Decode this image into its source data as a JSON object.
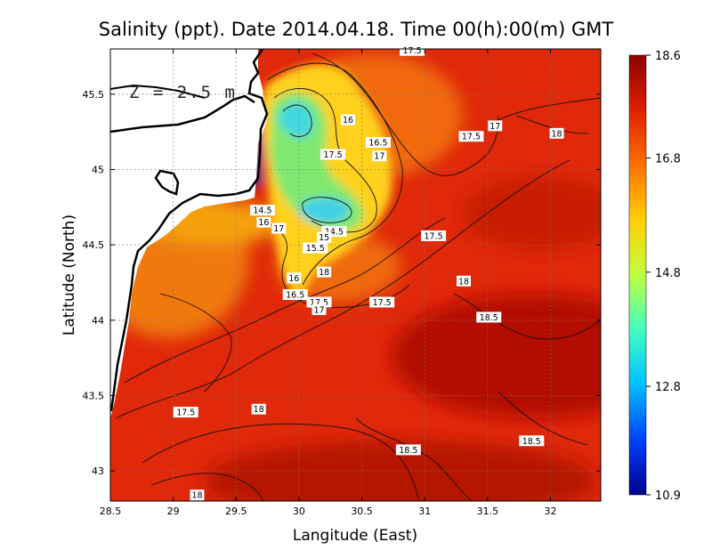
{
  "chart_data": {
    "type": "heatmap",
    "title": "Salinity (ppt). Date 2014.04.18. Time 00(h):00(m) GMT",
    "xlabel": "Langitude (East)",
    "ylabel": "Latitude (North)",
    "annotation": "Z = 2.5 m",
    "xlim": [
      28.5,
      32.4
    ],
    "ylim": [
      42.8,
      45.8
    ],
    "x_ticks": [
      "28.5",
      "29",
      "29.5",
      "30",
      "30.5",
      "31",
      "31.5",
      "32"
    ],
    "x_tick_values": [
      28.5,
      29,
      29.5,
      30,
      30.5,
      31,
      31.5,
      32
    ],
    "y_ticks": [
      "43",
      "43.5",
      "44",
      "44.5",
      "45",
      "45.5"
    ],
    "y_tick_values": [
      43,
      43.5,
      44,
      44.5,
      45,
      45.5
    ],
    "grid": true,
    "colorbar": {
      "min": 10.9,
      "max": 18.6,
      "ticks": [
        "18.6",
        "16.8",
        "14.8",
        "12.8",
        "10.9"
      ],
      "tick_values": [
        18.6,
        16.8,
        14.8,
        12.8,
        10.9
      ],
      "colormap": [
        "#00008f",
        "#0040ff",
        "#00c0ff",
        "#40ffc0",
        "#c0ff40",
        "#ffd000",
        "#ff7000",
        "#e02000",
        "#8b0000"
      ]
    },
    "contour_labels": [
      {
        "text": "17.5",
        "x": 30.9,
        "y": 45.79
      },
      {
        "text": "16",
        "x": 30.39,
        "y": 45.33
      },
      {
        "text": "17",
        "x": 31.56,
        "y": 45.29
      },
      {
        "text": "17.5",
        "x": 31.37,
        "y": 45.22
      },
      {
        "text": "18",
        "x": 32.05,
        "y": 45.24
      },
      {
        "text": "16.5",
        "x": 30.63,
        "y": 45.18
      },
      {
        "text": "17.5",
        "x": 30.27,
        "y": 45.1
      },
      {
        "text": "17",
        "x": 30.64,
        "y": 45.09
      },
      {
        "text": "14.5",
        "x": 29.71,
        "y": 44.73
      },
      {
        "text": "16",
        "x": 29.72,
        "y": 44.65
      },
      {
        "text": "17",
        "x": 29.84,
        "y": 44.61
      },
      {
        "text": "14.5",
        "x": 30.28,
        "y": 44.59
      },
      {
        "text": "15",
        "x": 30.2,
        "y": 44.55
      },
      {
        "text": "17.5",
        "x": 31.07,
        "y": 44.56
      },
      {
        "text": "15.5",
        "x": 30.13,
        "y": 44.48
      },
      {
        "text": "16",
        "x": 29.96,
        "y": 44.28
      },
      {
        "text": "18",
        "x": 30.2,
        "y": 44.32
      },
      {
        "text": "18",
        "x": 31.31,
        "y": 44.26
      },
      {
        "text": "16.5",
        "x": 29.97,
        "y": 44.17
      },
      {
        "text": "17.5",
        "x": 30.16,
        "y": 44.12
      },
      {
        "text": "17",
        "x": 30.16,
        "y": 44.07
      },
      {
        "text": "17.5",
        "x": 30.66,
        "y": 44.12
      },
      {
        "text": "18.5",
        "x": 31.51,
        "y": 44.02
      },
      {
        "text": "17.5",
        "x": 29.1,
        "y": 43.39
      },
      {
        "text": "18",
        "x": 29.68,
        "y": 43.41
      },
      {
        "text": "18.5",
        "x": 30.87,
        "y": 43.14
      },
      {
        "text": "18.5",
        "x": 31.85,
        "y": 43.2
      },
      {
        "text": "18",
        "x": 29.19,
        "y": 42.84
      }
    ]
  }
}
